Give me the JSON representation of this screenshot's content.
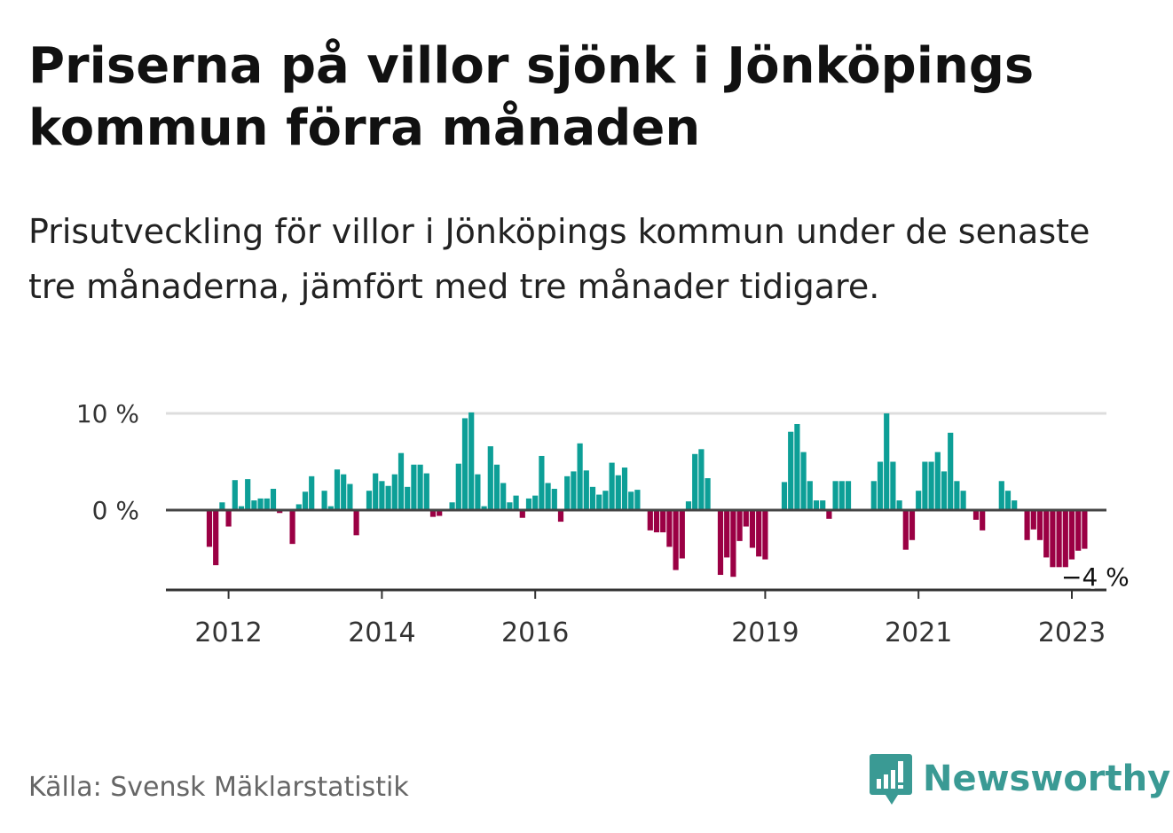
{
  "title": "Priserna på villor sjönk i Jönköpings kommun förra månaden",
  "subtitle": "Prisutveckling för villor i Jönköpings kommun under de senaste tre månaderna, jämfört med tre månader tidigare.",
  "source": "Källa: Svensk Mäklarstatistik",
  "brand": {
    "name": "Newsworthy",
    "icon": "newsworthy-logo-icon",
    "color": "#3a9a94"
  },
  "colors": {
    "positive": "#0d9f97",
    "negative": "#9b0044",
    "zero_line": "#444444",
    "grid": "#dddddd",
    "axis": "#333333"
  },
  "chart_data": {
    "type": "bar",
    "title": "Priserna på villor sjönk i Jönköpings kommun förra månaden",
    "xlabel": "",
    "ylabel": "",
    "ylim": [
      -8,
      10
    ],
    "yticks": [
      {
        "value": 0,
        "label": "0 %"
      },
      {
        "value": 10,
        "label": "10 %"
      }
    ],
    "start": {
      "year": 2011,
      "month": 10
    },
    "xticks": [
      {
        "year": 2012,
        "label": "2012"
      },
      {
        "year": 2014,
        "label": "2014"
      },
      {
        "year": 2016,
        "label": "2016"
      },
      {
        "year": 2019,
        "label": "2019"
      },
      {
        "year": 2021,
        "label": "2021"
      },
      {
        "year": 2023,
        "label": "2023"
      }
    ],
    "last_value_label": "−4 %",
    "values": [
      -3.8,
      -5.7,
      0.8,
      -1.7,
      3.1,
      0.4,
      3.2,
      1.0,
      1.2,
      1.2,
      2.2,
      -0.3,
      null,
      -3.5,
      0.6,
      1.9,
      3.5,
      null,
      2.0,
      0.4,
      4.2,
      3.7,
      2.7,
      -2.6,
      null,
      2.0,
      3.8,
      3.0,
      2.5,
      3.7,
      5.9,
      2.4,
      4.7,
      4.7,
      3.8,
      -0.7,
      -0.6,
      null,
      0.8,
      4.8,
      9.5,
      10.1,
      3.7,
      0.4,
      6.6,
      4.7,
      2.8,
      0.8,
      1.5,
      -0.8,
      1.2,
      1.5,
      5.6,
      2.8,
      2.2,
      -1.2,
      3.5,
      4.0,
      6.9,
      4.1,
      2.4,
      1.6,
      2.0,
      4.9,
      3.6,
      4.4,
      1.9,
      2.1,
      null,
      -2.1,
      -2.3,
      -2.3,
      -3.8,
      -6.2,
      -5.0,
      0.9,
      5.8,
      6.3,
      3.3,
      null,
      -6.7,
      -4.9,
      -6.9,
      -3.2,
      -1.7,
      -3.9,
      -4.8,
      -5.1,
      null,
      null,
      2.9,
      8.1,
      8.9,
      6.0,
      3.0,
      1.0,
      1.0,
      -0.9,
      3.0,
      3.0,
      3.0,
      null,
      null,
      null,
      3.0,
      5.0,
      10.0,
      5.0,
      1.0,
      -4.1,
      -3.1,
      2.0,
      5.0,
      5.0,
      6.0,
      4.0,
      8.0,
      3.0,
      2.0,
      null,
      -1.0,
      -2.1,
      null,
      null,
      3.0,
      2.0,
      1.0,
      null,
      -3.1,
      -2.0,
      -3.1,
      -4.9,
      -5.9,
      -5.9,
      -5.9,
      -5.1,
      -4.2,
      -4.0
    ]
  }
}
